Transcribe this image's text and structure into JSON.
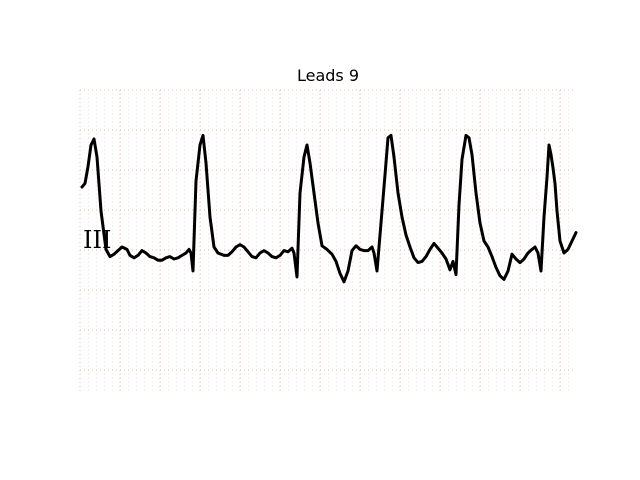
{
  "chart_data": {
    "type": "line",
    "title": "Leads 9",
    "lead_label": "III",
    "grid": true,
    "colors": {
      "grid": "#f3b9a8",
      "grid_dots": "#e88f7c",
      "trace": "#000000"
    },
    "trace": [
      [
        0,
        0.45
      ],
      [
        3,
        0.48
      ],
      [
        6,
        0.62
      ],
      [
        9,
        0.8
      ],
      [
        12,
        0.85
      ],
      [
        15,
        0.7
      ],
      [
        19,
        0.25
      ],
      [
        24,
        -0.07
      ],
      [
        28,
        -0.13
      ],
      [
        32,
        -0.11
      ],
      [
        36,
        -0.08
      ],
      [
        40,
        -0.05
      ],
      [
        45,
        -0.07
      ],
      [
        48,
        -0.12
      ],
      [
        52,
        -0.14
      ],
      [
        56,
        -0.12
      ],
      [
        60,
        -0.08
      ],
      [
        64,
        -0.1
      ],
      [
        68,
        -0.13
      ],
      [
        72,
        -0.14
      ],
      [
        76,
        -0.16
      ],
      [
        80,
        -0.16
      ],
      [
        84,
        -0.14
      ],
      [
        88,
        -0.13
      ],
      [
        92,
        -0.15
      ],
      [
        96,
        -0.14
      ],
      [
        100,
        -0.12
      ],
      [
        104,
        -0.1
      ],
      [
        107,
        -0.07
      ],
      [
        109,
        -0.1
      ],
      [
        111,
        -0.25
      ],
      [
        114,
        0.5
      ],
      [
        118,
        0.8
      ],
      [
        121,
        0.88
      ],
      [
        124,
        0.65
      ],
      [
        128,
        0.2
      ],
      [
        132,
        -0.05
      ],
      [
        136,
        -0.1
      ],
      [
        142,
        -0.12
      ],
      [
        146,
        -0.12
      ],
      [
        150,
        -0.09
      ],
      [
        154,
        -0.05
      ],
      [
        158,
        -0.03
      ],
      [
        162,
        -0.05
      ],
      [
        166,
        -0.09
      ],
      [
        170,
        -0.13
      ],
      [
        174,
        -0.14
      ],
      [
        178,
        -0.1
      ],
      [
        182,
        -0.08
      ],
      [
        186,
        -0.1
      ],
      [
        190,
        -0.13
      ],
      [
        194,
        -0.14
      ],
      [
        198,
        -0.12
      ],
      [
        202,
        -0.08
      ],
      [
        206,
        -0.09
      ],
      [
        210,
        -0.06
      ],
      [
        212,
        -0.1
      ],
      [
        215,
        -0.3
      ],
      [
        218,
        0.4
      ],
      [
        222,
        0.7
      ],
      [
        225,
        0.8
      ],
      [
        228,
        0.65
      ],
      [
        232,
        0.4
      ],
      [
        236,
        0.15
      ],
      [
        240,
        -0.04
      ],
      [
        245,
        -0.07
      ],
      [
        250,
        -0.11
      ],
      [
        254,
        -0.17
      ],
      [
        258,
        -0.27
      ],
      [
        262,
        -0.34
      ],
      [
        266,
        -0.25
      ],
      [
        270,
        -0.08
      ],
      [
        274,
        -0.04
      ],
      [
        278,
        -0.07
      ],
      [
        282,
        -0.08
      ],
      [
        286,
        -0.08
      ],
      [
        290,
        -0.05
      ],
      [
        292,
        -0.1
      ],
      [
        295,
        -0.25
      ],
      [
        299,
        0.15
      ],
      [
        303,
        0.55
      ],
      [
        306,
        0.86
      ],
      [
        309,
        0.88
      ],
      [
        312,
        0.7
      ],
      [
        316,
        0.4
      ],
      [
        320,
        0.2
      ],
      [
        324,
        0.05
      ],
      [
        328,
        -0.05
      ],
      [
        332,
        -0.14
      ],
      [
        336,
        -0.18
      ],
      [
        340,
        -0.17
      ],
      [
        344,
        -0.13
      ],
      [
        348,
        -0.07
      ],
      [
        352,
        -0.02
      ],
      [
        356,
        -0.06
      ],
      [
        360,
        -0.1
      ],
      [
        364,
        -0.15
      ],
      [
        368,
        -0.24
      ],
      [
        371,
        -0.17
      ],
      [
        374,
        -0.28
      ],
      [
        377,
        0.3
      ],
      [
        380,
        0.68
      ],
      [
        384,
        0.88
      ],
      [
        387,
        0.86
      ],
      [
        390,
        0.72
      ],
      [
        394,
        0.4
      ],
      [
        398,
        0.15
      ],
      [
        402,
        0.0
      ],
      [
        406,
        -0.05
      ],
      [
        410,
        -0.13
      ],
      [
        414,
        -0.22
      ],
      [
        418,
        -0.29
      ],
      [
        422,
        -0.32
      ],
      [
        426,
        -0.25
      ],
      [
        430,
        -0.11
      ],
      [
        434,
        -0.15
      ],
      [
        438,
        -0.18
      ],
      [
        442,
        -0.15
      ],
      [
        446,
        -0.1
      ],
      [
        450,
        -0.07
      ],
      [
        453,
        -0.05
      ],
      [
        456,
        -0.1
      ],
      [
        459,
        -0.25
      ],
      [
        462,
        0.2
      ],
      [
        465,
        0.53
      ],
      [
        467,
        0.8
      ],
      [
        469,
        0.72
      ],
      [
        471,
        0.61
      ],
      [
        473,
        0.48
      ],
      [
        475,
        0.25
      ],
      [
        478,
        0.0
      ],
      [
        482,
        -0.1
      ],
      [
        486,
        -0.07
      ],
      [
        490,
        0.0
      ],
      [
        494,
        0.07
      ]
    ]
  }
}
